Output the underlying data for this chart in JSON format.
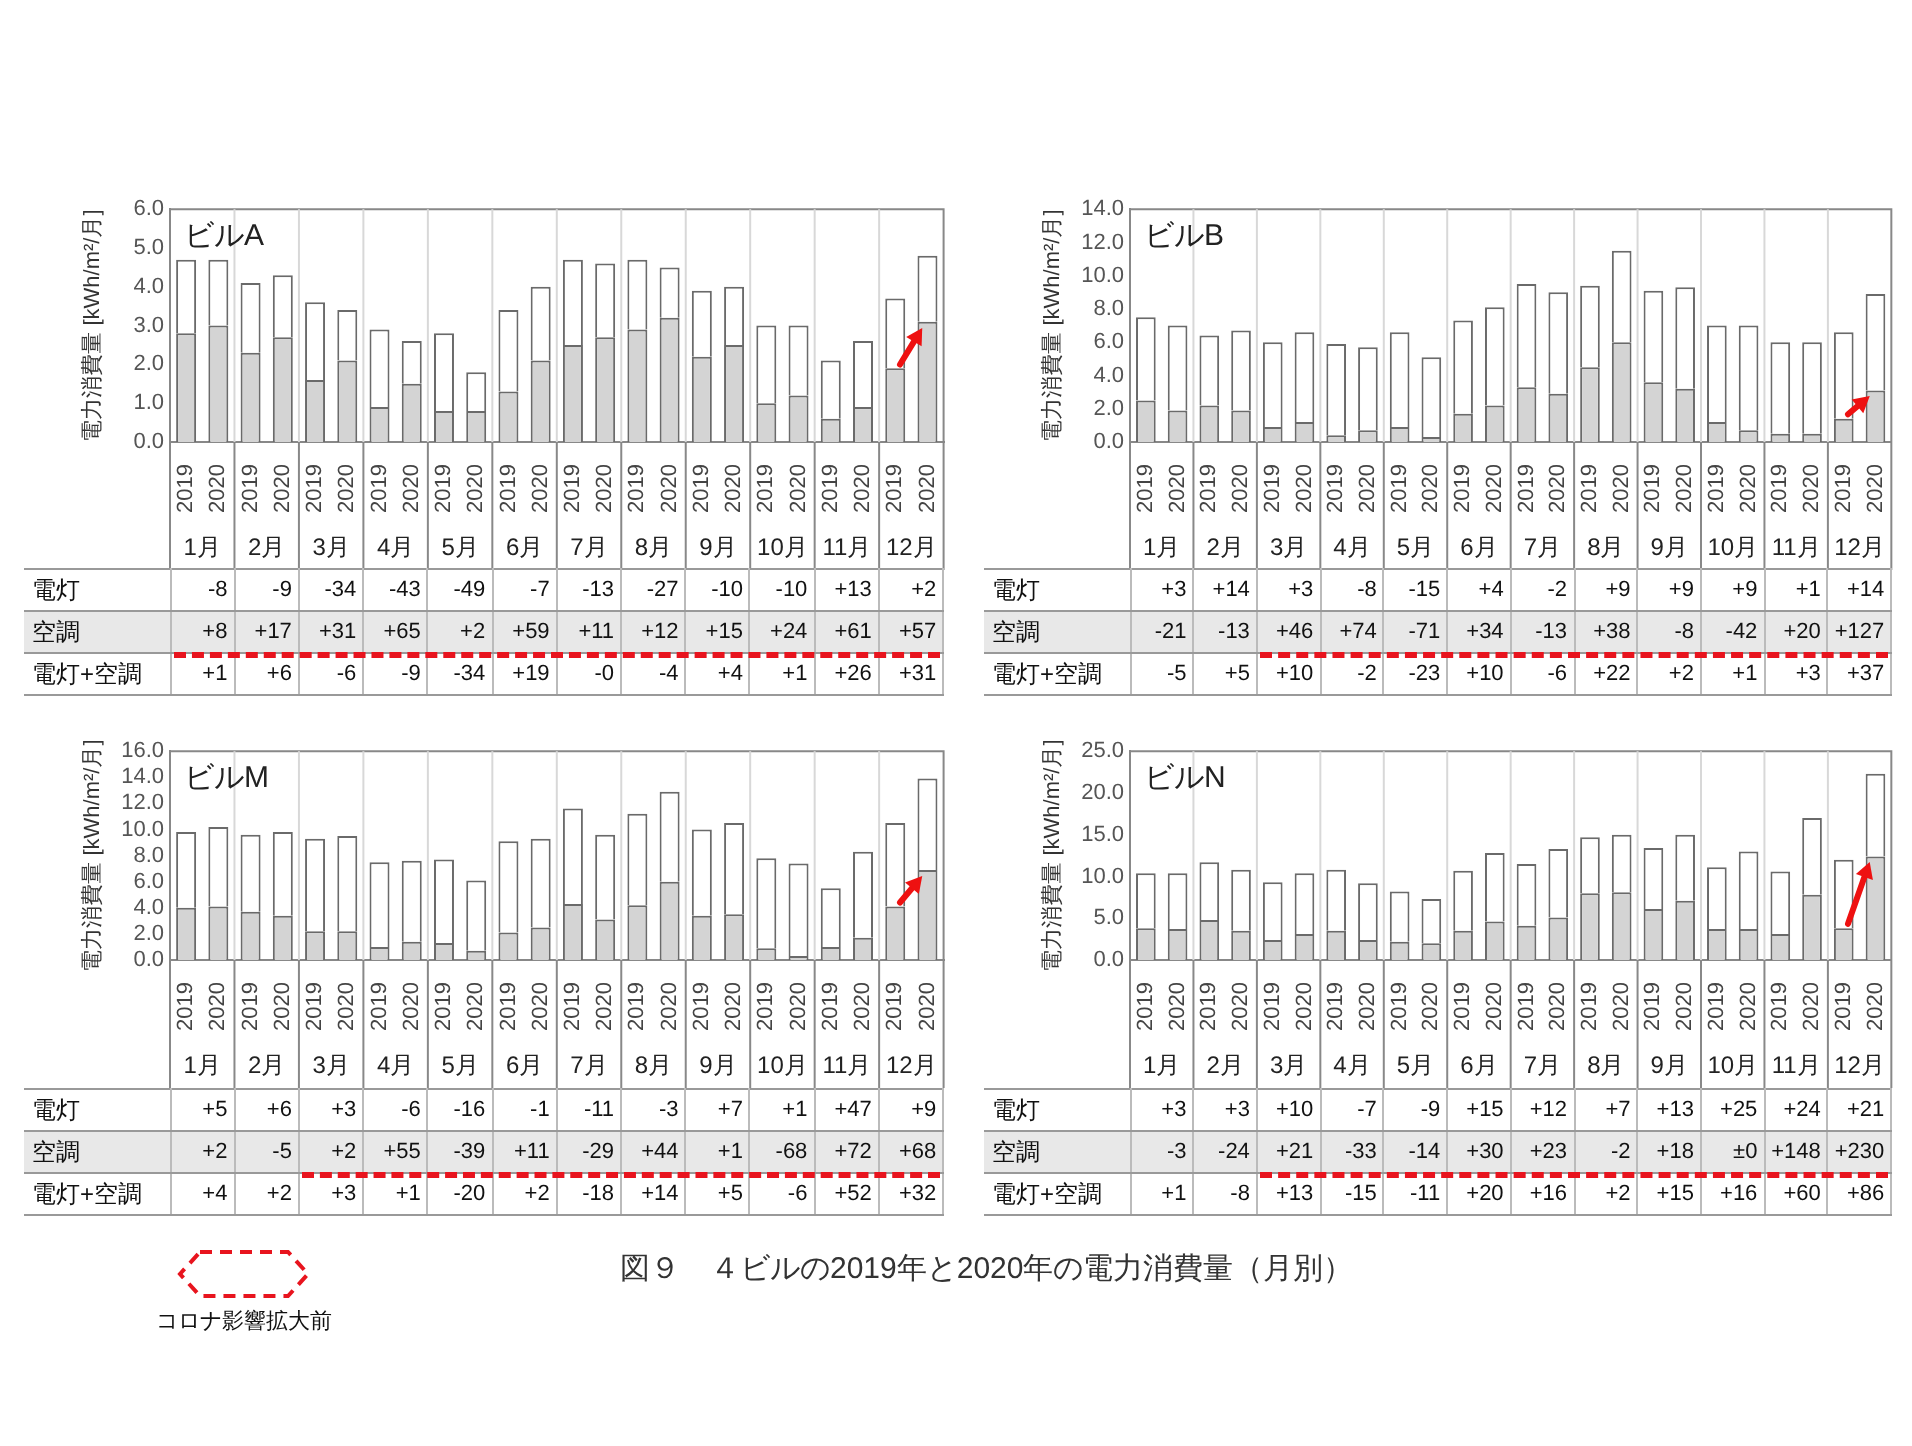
{
  "chart_data": [
    {
      "type": "bar",
      "title": "ビルA",
      "ylabel": "電力消費量 [kWh/m²/月]",
      "stacked": true,
      "grid": "x",
      "categories": [
        "2019",
        "2020",
        "2019",
        "2020",
        "2019",
        "2020",
        "2019",
        "2020",
        "2019",
        "2020",
        "2019",
        "2020",
        "2019",
        "2020",
        "2019",
        "2020",
        "2019",
        "2020",
        "2019",
        "2020",
        "2019",
        "2020",
        "2019",
        "2020"
      ],
      "ylim": [
        0,
        6
      ],
      "yticks": [
        {
          "value": 0,
          "label": "0.0"
        },
        {
          "value": 1,
          "label": "1.0"
        },
        {
          "value": 2,
          "label": "2.0"
        },
        {
          "value": 3,
          "label": "3.0"
        },
        {
          "value": 4,
          "label": "4.0"
        },
        {
          "value": 5,
          "label": "5.0"
        },
        {
          "value": 6,
          "label": "6.0"
        }
      ],
      "series": [
        {
          "color": "#d4d4d4",
          "values": [
            2.8,
            3.0,
            2.3,
            2.7,
            1.6,
            2.1,
            0.9,
            1.5,
            0.8,
            0.8,
            1.3,
            2.1,
            2.5,
            2.7,
            2.9,
            3.2,
            2.2,
            2.5,
            1.0,
            1.2,
            0.6,
            0.9,
            1.9,
            3.1
          ]
        },
        {
          "color": "#ffffff",
          "values": [
            1.9,
            1.7,
            1.8,
            1.6,
            2.0,
            1.3,
            2.0,
            1.1,
            2.0,
            1.0,
            2.1,
            1.9,
            2.2,
            1.9,
            1.8,
            1.3,
            1.7,
            1.5,
            2.0,
            1.8,
            1.5,
            1.7,
            1.8,
            1.7
          ]
        }
      ],
      "annotations": [
        "1月",
        "2月",
        "3月",
        "4月",
        "5月",
        "6月",
        "7月",
        "8月",
        "9月",
        "10月",
        "11月",
        "12月",
        "電灯",
        "-8",
        "-9",
        "-34",
        "-43",
        "-49",
        "-7",
        "-13",
        "-27",
        "-10",
        "-10",
        "+13",
        "+2",
        "空調",
        "+8",
        "+17",
        "+31",
        "+65",
        "+2",
        "+59",
        "+11",
        "+12",
        "+15",
        "+24",
        "+61",
        "+57",
        "電灯+空調",
        "+1",
        "+6",
        "-6",
        "-9",
        "-34",
        "+19",
        "-0",
        "-4",
        "+4",
        "+1",
        "+26",
        "+31"
      ]
    },
    {
      "type": "bar",
      "title": "ビルB",
      "ylabel": "電力消費量 [kWh/m²/月]",
      "stacked": true,
      "grid": "x",
      "categories": [
        "2019",
        "2020",
        "2019",
        "2020",
        "2019",
        "2020",
        "2019",
        "2020",
        "2019",
        "2020",
        "2019",
        "2020",
        "2019",
        "2020",
        "2019",
        "2020",
        "2019",
        "2020",
        "2019",
        "2020",
        "2019",
        "2020",
        "2019",
        "2020"
      ],
      "ylim": [
        0,
        14
      ],
      "yticks": [
        {
          "value": 0,
          "label": "0.0"
        },
        {
          "value": 2,
          "label": "2.0"
        },
        {
          "value": 4,
          "label": "4.0"
        },
        {
          "value": 6,
          "label": "6.0"
        },
        {
          "value": 8,
          "label": "8.0"
        },
        {
          "value": 10,
          "label": "10.0"
        },
        {
          "value": 12,
          "label": "12.0"
        },
        {
          "value": 14,
          "label": "14.0"
        }
      ],
      "series": [
        {
          "color": "#d4d4d4",
          "values": [
            2.5,
            1.9,
            2.2,
            1.9,
            0.9,
            1.2,
            0.4,
            0.7,
            0.9,
            0.3,
            1.7,
            2.2,
            3.3,
            2.9,
            4.5,
            6.0,
            3.6,
            3.2,
            1.2,
            0.7,
            0.5,
            0.5,
            1.4,
            3.1
          ]
        },
        {
          "color": "#ffffff",
          "values": [
            5.0,
            5.1,
            4.2,
            4.8,
            5.1,
            5.4,
            5.5,
            5.0,
            5.7,
            4.8,
            5.6,
            5.9,
            6.2,
            6.1,
            4.9,
            5.5,
            5.5,
            6.1,
            5.8,
            6.3,
            5.5,
            5.5,
            5.2,
            5.8
          ]
        }
      ],
      "annotations": [
        "1月",
        "2月",
        "3月",
        "4月",
        "5月",
        "6月",
        "7月",
        "8月",
        "9月",
        "10月",
        "11月",
        "12月",
        "電灯",
        "+3",
        "+14",
        "+3",
        "-8",
        "-15",
        "+4",
        "-2",
        "+9",
        "+9",
        "+9",
        "+1",
        "+14",
        "空調",
        "-21",
        "-13",
        "+46",
        "+74",
        "-71",
        "+34",
        "-13",
        "+38",
        "-8",
        "-42",
        "+20",
        "+127",
        "電灯+空調",
        "-5",
        "+5",
        "+10",
        "-2",
        "-23",
        "+10",
        "-6",
        "+22",
        "+2",
        "+1",
        "+3",
        "+37"
      ]
    },
    {
      "type": "bar",
      "title": "ビルM",
      "ylabel": "電力消費量 [kWh/m²/月]",
      "stacked": true,
      "grid": "x",
      "categories": [
        "2019",
        "2020",
        "2019",
        "2020",
        "2019",
        "2020",
        "2019",
        "2020",
        "2019",
        "2020",
        "2019",
        "2020",
        "2019",
        "2020",
        "2019",
        "2020",
        "2019",
        "2020",
        "2019",
        "2020",
        "2019",
        "2020",
        "2019",
        "2020"
      ],
      "ylim": [
        0,
        16
      ],
      "yticks": [
        {
          "value": 0,
          "label": "0.0"
        },
        {
          "value": 2,
          "label": "2.0"
        },
        {
          "value": 4,
          "label": "4.0"
        },
        {
          "value": 6,
          "label": "6.0"
        },
        {
          "value": 8,
          "label": "8.0"
        },
        {
          "value": 10,
          "label": "10.0"
        },
        {
          "value": 12,
          "label": "12.0"
        },
        {
          "value": 14,
          "label": "14.0"
        },
        {
          "value": 16,
          "label": "16.0"
        }
      ],
      "series": [
        {
          "color": "#d4d4d4",
          "values": [
            4.0,
            4.1,
            3.7,
            3.4,
            2.2,
            2.2,
            1.0,
            1.4,
            1.3,
            0.7,
            2.1,
            2.5,
            4.3,
            3.1,
            4.2,
            6.0,
            3.4,
            3.5,
            0.9,
            0.3,
            1.0,
            1.7,
            4.1,
            6.9
          ]
        },
        {
          "color": "#ffffff",
          "values": [
            5.8,
            6.1,
            5.9,
            6.4,
            7.1,
            7.3,
            6.5,
            6.2,
            6.4,
            5.4,
            7.0,
            6.8,
            7.3,
            6.5,
            7.0,
            6.9,
            6.6,
            7.0,
            6.9,
            7.1,
            4.5,
            6.6,
            6.4,
            7.0
          ]
        }
      ],
      "annotations": [
        "1月",
        "2月",
        "3月",
        "4月",
        "5月",
        "6月",
        "7月",
        "8月",
        "9月",
        "10月",
        "11月",
        "12月",
        "電灯",
        "+5",
        "+6",
        "+3",
        "-6",
        "-16",
        "-1",
        "-11",
        "-3",
        "+7",
        "+1",
        "+47",
        "+9",
        "空調",
        "+2",
        "-5",
        "+2",
        "+55",
        "-39",
        "+11",
        "-29",
        "+44",
        "+1",
        "-68",
        "+72",
        "+68",
        "電灯+空調",
        "+4",
        "+2",
        "+3",
        "+1",
        "-20",
        "+2",
        "-18",
        "+14",
        "+5",
        "-6",
        "+52",
        "+32"
      ]
    },
    {
      "type": "bar",
      "title": "ビルN",
      "ylabel": "電力消費量 [kWh/m²/月]",
      "stacked": true,
      "grid": "x",
      "categories": [
        "2019",
        "2020",
        "2019",
        "2020",
        "2019",
        "2020",
        "2019",
        "2020",
        "2019",
        "2020",
        "2019",
        "2020",
        "2019",
        "2020",
        "2019",
        "2020",
        "2019",
        "2020",
        "2019",
        "2020",
        "2019",
        "2020",
        "2019",
        "2020"
      ],
      "ylim": [
        0,
        25
      ],
      "yticks": [
        {
          "value": 0,
          "label": "0.0"
        },
        {
          "value": 5,
          "label": "5.0"
        },
        {
          "value": 10,
          "label": "10.0"
        },
        {
          "value": 15,
          "label": "15.0"
        },
        {
          "value": 20,
          "label": "20.0"
        },
        {
          "value": 25,
          "label": "25.0"
        }
      ],
      "series": [
        {
          "color": "#d4d4d4",
          "values": [
            3.8,
            3.7,
            4.8,
            3.5,
            2.4,
            3.1,
            3.5,
            2.4,
            2.2,
            2.0,
            3.5,
            4.6,
            4.1,
            5.1,
            8.0,
            8.1,
            6.1,
            7.1,
            3.7,
            3.7,
            3.1,
            7.8,
            3.8,
            12.4
          ]
        },
        {
          "color": "#ffffff",
          "values": [
            6.6,
            6.7,
            6.9,
            7.3,
            6.9,
            7.3,
            7.3,
            6.8,
            6.0,
            5.3,
            7.2,
            8.2,
            7.4,
            8.2,
            6.7,
            6.9,
            7.3,
            7.9,
            7.4,
            9.3,
            7.5,
            9.2,
            8.2,
            9.9
          ]
        }
      ],
      "annotations": [
        "1月",
        "2月",
        "3月",
        "4月",
        "5月",
        "6月",
        "7月",
        "8月",
        "9月",
        "10月",
        "11月",
        "12月",
        "電灯",
        "+3",
        "+3",
        "+10",
        "-7",
        "-9",
        "+15",
        "+12",
        "+7",
        "+13",
        "+25",
        "+24",
        "+21",
        "空調",
        "-3",
        "-24",
        "+21",
        "-33",
        "-14",
        "+30",
        "+23",
        "-2",
        "+18",
        "±0",
        "+148",
        "+230",
        "電灯+空調",
        "+1",
        "-8",
        "+13",
        "-15",
        "-11",
        "+20",
        "+16",
        "+2",
        "+15",
        "+16",
        "+60",
        "+86"
      ]
    },
    {
      "type": "other",
      "annotations": [
        "図９　４ビルの2019年と2020年の電力消費量（月別）",
        "コロナ影響拡大前"
      ]
    }
  ]
}
